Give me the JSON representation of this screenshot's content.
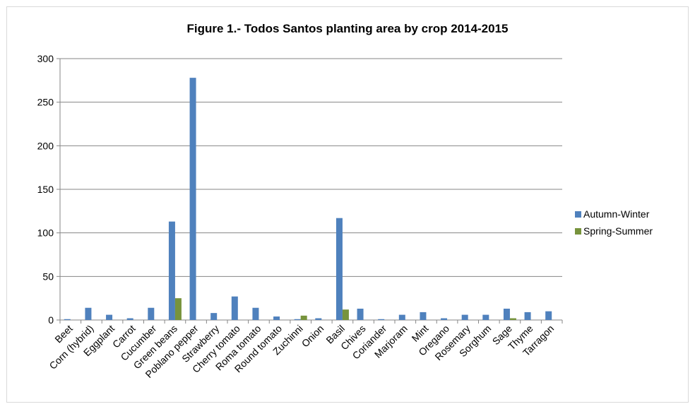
{
  "chart_data": {
    "type": "bar",
    "title": "Figure 1.- Todos Santos planting area by crop 2014-2015",
    "xlabel": "",
    "ylabel": "",
    "ylim": [
      0,
      300
    ],
    "yticks": [
      0,
      50,
      100,
      150,
      200,
      250,
      300
    ],
    "grid": true,
    "legend_position": "right",
    "categories": [
      "Beet",
      "Corn (hybrid)",
      "Eggplant",
      "Carrot",
      "Cucumber",
      "Green beans",
      "Poblano pepper",
      "Strawberry",
      "Cherry tomato",
      "Roma tomato",
      "Round tomato",
      "Zuchinni",
      "Onion",
      "Basil",
      "Chives",
      "Coriander",
      "Marjoram",
      "Mint",
      "Oregano",
      "Rosemary",
      "Sorghum",
      "Sage",
      "Thyme",
      "Tarragon"
    ],
    "series": [
      {
        "name": "Autumn-Winter",
        "color": "#4f81bd",
        "values": [
          1,
          14,
          6,
          2,
          14,
          113,
          278,
          8,
          27,
          14,
          4,
          1,
          2,
          117,
          13,
          1,
          6,
          9,
          2,
          6,
          6,
          13,
          9,
          10
        ]
      },
      {
        "name": "Spring-Summer",
        "color": "#77933c",
        "values": [
          0,
          0,
          0,
          0,
          0,
          25,
          0,
          0,
          0,
          0,
          0,
          5,
          0,
          12,
          0,
          0,
          0,
          0,
          0,
          0,
          0,
          2,
          0,
          0
        ]
      }
    ]
  }
}
